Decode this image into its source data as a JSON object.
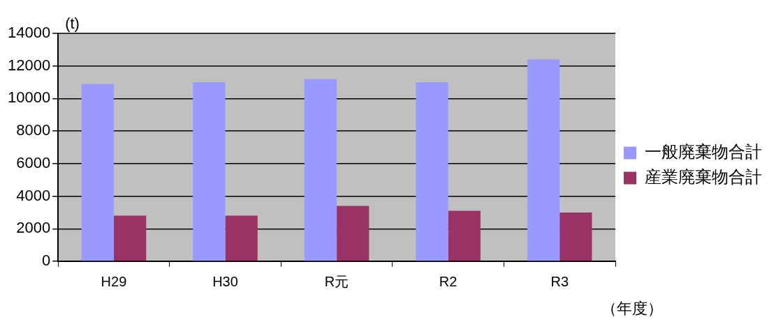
{
  "chart_data": {
    "type": "bar",
    "ylabel": "(t)",
    "xlabel": "（年度）",
    "categories": [
      "H29",
      "H30",
      "R元",
      "R2",
      "R3"
    ],
    "series": [
      {
        "name": "一般廃棄物合計",
        "color": "#9999ff",
        "values": [
          10900,
          11000,
          11200,
          11000,
          12400
        ]
      },
      {
        "name": "産業廃棄物合計",
        "color": "#993366",
        "values": [
          2800,
          2800,
          3400,
          3100,
          3000
        ]
      }
    ],
    "ylim": [
      0,
      14000
    ],
    "yticks": [
      0,
      2000,
      4000,
      6000,
      8000,
      10000,
      12000,
      14000
    ],
    "grid": "y",
    "legend": "right"
  }
}
